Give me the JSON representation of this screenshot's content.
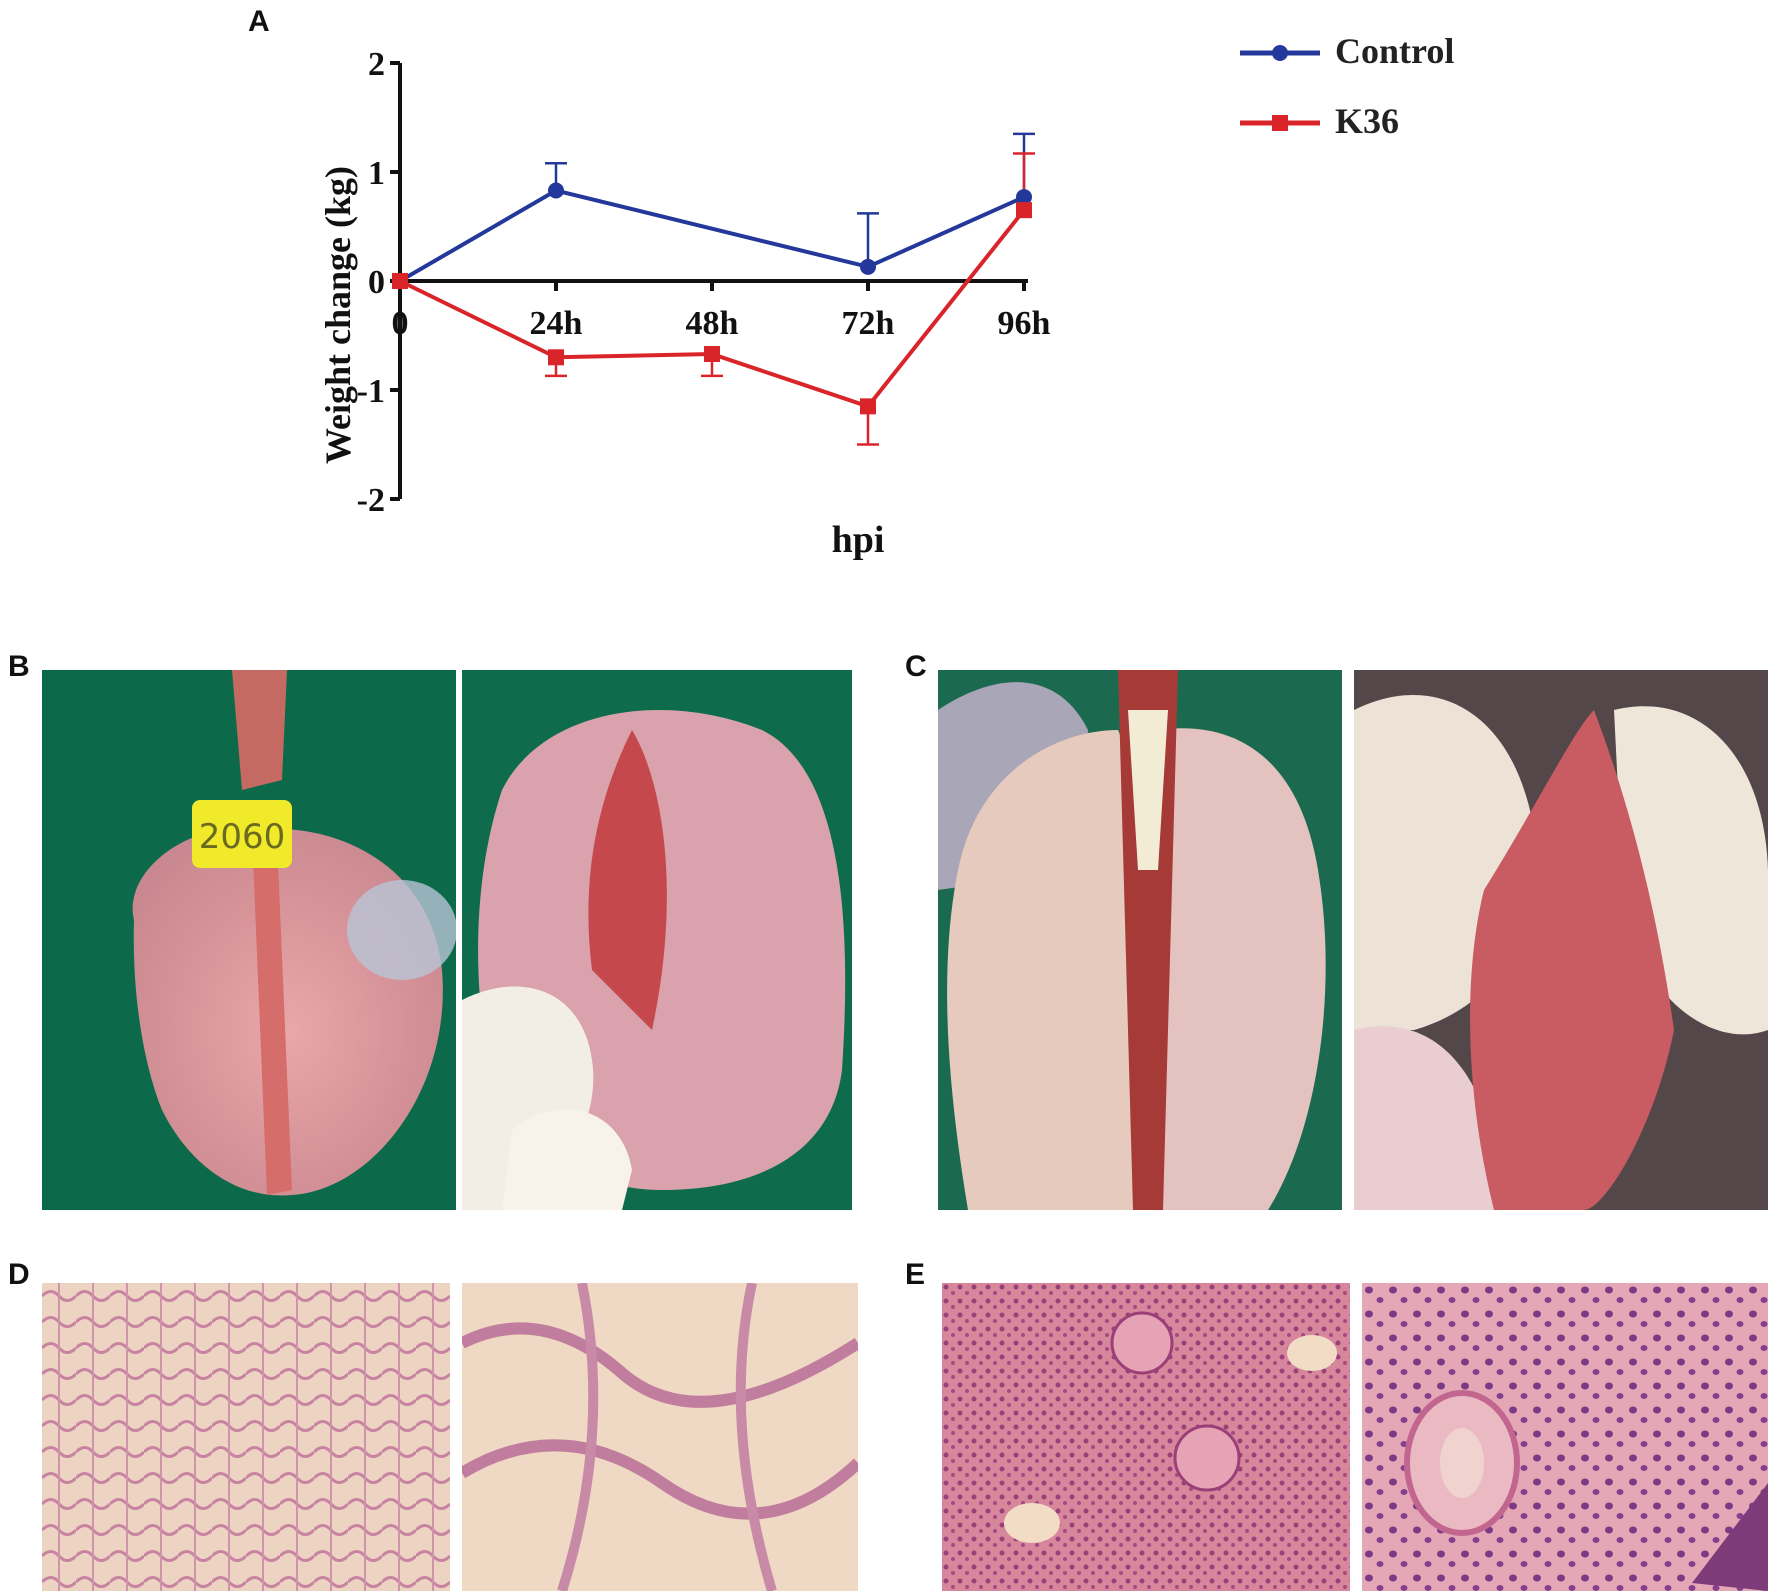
{
  "panels": {
    "a": "A",
    "b": "B",
    "c": "C",
    "d": "D",
    "e": "E"
  },
  "chart_data": {
    "type": "line",
    "title": "",
    "xlabel": "hpi",
    "ylabel": "Weight change (kg)",
    "categories": [
      "0",
      "24h",
      "48h",
      "72h",
      "96h"
    ],
    "ylim": [
      -2,
      2
    ],
    "yticks": [
      "2",
      "1",
      "0",
      "-1",
      "-2"
    ],
    "legend_position": "top-right",
    "series": [
      {
        "name": "Control",
        "color": "#23389a",
        "marker": "circle",
        "points": [
          {
            "x": "0",
            "y": 0,
            "err": null
          },
          {
            "x": "24h",
            "y": 0.83,
            "err": 0.25
          },
          {
            "x": "72h",
            "y": 0.13,
            "err": 0.49
          },
          {
            "x": "96h",
            "y": 0.77,
            "err": 0.58
          }
        ]
      },
      {
        "name": "K36",
        "color": "#d9252a",
        "marker": "square",
        "points": [
          {
            "x": "0",
            "y": 0,
            "err": null
          },
          {
            "x": "24h",
            "y": -0.7,
            "err": 0.17
          },
          {
            "x": "48h",
            "y": -0.67,
            "err": 0.2
          },
          {
            "x": "72h",
            "y": -1.15,
            "err": 0.35
          },
          {
            "x": "96h",
            "y": 0.65,
            "err": 0.52
          }
        ]
      }
    ]
  },
  "photos": {
    "b_left": "gross-lung-control-tag",
    "b_right": "gross-lung-control-closeup",
    "c_left": "gross-lung-infected-lesions",
    "c_right": "gross-lung-infected-lobe",
    "d_left": "histology-control-low",
    "d_right": "histology-control-high",
    "e_left": "histology-infected-low",
    "e_right": "histology-infected-high"
  },
  "tag_number": "2060"
}
